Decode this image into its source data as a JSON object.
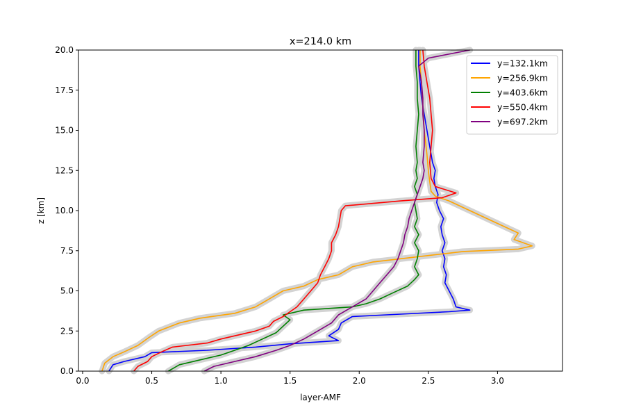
{
  "chart_data": {
    "type": "line",
    "title": "x=214.0 km",
    "xlabel": "layer-AMF",
    "ylabel": "z [km]",
    "xlim": [
      -0.03,
      3.47
    ],
    "ylim": [
      0,
      20
    ],
    "xticks": [
      "0.0",
      "0.5",
      "1.0",
      "1.5",
      "2.0",
      "2.5",
      "3.0"
    ],
    "xtick_values": [
      0,
      0.5,
      1.0,
      1.5,
      2.0,
      2.5,
      3.0
    ],
    "yticks": [
      "0.0",
      "2.5",
      "5.0",
      "7.5",
      "10.0",
      "12.5",
      "15.0",
      "17.5",
      "20.0"
    ],
    "ytick_values": [
      0,
      2.5,
      5.0,
      7.5,
      10.0,
      12.5,
      15.0,
      17.5,
      20.0
    ],
    "grid": false,
    "legend_position": "top-right",
    "uncertainty_band_color": "#d3d3d3",
    "series": [
      {
        "name": "y=132.1km",
        "color": "#0000ff",
        "points": [
          [
            0.19,
            0
          ],
          [
            0.22,
            0.4
          ],
          [
            0.3,
            0.6
          ],
          [
            0.45,
            0.9
          ],
          [
            0.5,
            1.15
          ],
          [
            0.9,
            1.3
          ],
          [
            1.25,
            1.5
          ],
          [
            1.5,
            1.7
          ],
          [
            1.85,
            1.9
          ],
          [
            1.78,
            2.2
          ],
          [
            1.85,
            2.6
          ],
          [
            1.87,
            3.0
          ],
          [
            1.95,
            3.4
          ],
          [
            2.3,
            3.55
          ],
          [
            2.65,
            3.7
          ],
          [
            2.8,
            3.8
          ],
          [
            2.7,
            4.0
          ],
          [
            2.68,
            4.5
          ],
          [
            2.65,
            5.0
          ],
          [
            2.62,
            5.5
          ],
          [
            2.63,
            6.0
          ],
          [
            2.61,
            6.5
          ],
          [
            2.62,
            7.0
          ],
          [
            2.6,
            7.5
          ],
          [
            2.62,
            8.0
          ],
          [
            2.6,
            8.5
          ],
          [
            2.59,
            9.0
          ],
          [
            2.61,
            9.5
          ],
          [
            2.58,
            10.0
          ],
          [
            2.56,
            10.5
          ],
          [
            2.57,
            11.0
          ],
          [
            2.55,
            11.5
          ],
          [
            2.54,
            12.0
          ],
          [
            2.55,
            12.5
          ],
          [
            2.53,
            13.0
          ],
          [
            2.51,
            14.0
          ],
          [
            2.49,
            15.0
          ],
          [
            2.47,
            16.0
          ],
          [
            2.45,
            17.0
          ],
          [
            2.44,
            18.0
          ],
          [
            2.43,
            19.0
          ],
          [
            2.43,
            20.0
          ]
        ]
      },
      {
        "name": "y=256.9km",
        "color": "#ffa500",
        "points": [
          [
            0.14,
            0
          ],
          [
            0.16,
            0.5
          ],
          [
            0.22,
            0.9
          ],
          [
            0.3,
            1.2
          ],
          [
            0.4,
            1.6
          ],
          [
            0.48,
            2.1
          ],
          [
            0.55,
            2.5
          ],
          [
            0.7,
            3.0
          ],
          [
            0.85,
            3.3
          ],
          [
            1.1,
            3.6
          ],
          [
            1.25,
            4.0
          ],
          [
            1.35,
            4.5
          ],
          [
            1.45,
            5.0
          ],
          [
            1.6,
            5.3
          ],
          [
            1.7,
            5.7
          ],
          [
            1.85,
            6.0
          ],
          [
            1.95,
            6.5
          ],
          [
            2.1,
            6.8
          ],
          [
            2.3,
            7.0
          ],
          [
            2.6,
            7.3
          ],
          [
            2.75,
            7.45
          ],
          [
            3.15,
            7.6
          ],
          [
            3.25,
            7.8
          ],
          [
            3.12,
            8.2
          ],
          [
            3.15,
            8.6
          ],
          [
            3.05,
            9.0
          ],
          [
            2.95,
            9.4
          ],
          [
            2.85,
            9.8
          ],
          [
            2.75,
            10.2
          ],
          [
            2.65,
            10.6
          ],
          [
            2.55,
            10.9
          ],
          [
            2.52,
            11.2
          ],
          [
            2.51,
            11.8
          ],
          [
            2.5,
            12.5
          ],
          [
            2.49,
            13.5
          ],
          [
            2.47,
            15.0
          ],
          [
            2.46,
            16.5
          ],
          [
            2.45,
            18.0
          ],
          [
            2.44,
            19.0
          ],
          [
            2.44,
            20.0
          ]
        ]
      },
      {
        "name": "y=403.6km",
        "color": "#008000",
        "points": [
          [
            0.62,
            0
          ],
          [
            0.7,
            0.4
          ],
          [
            0.85,
            0.7
          ],
          [
            1.0,
            1.0
          ],
          [
            1.1,
            1.3
          ],
          [
            1.2,
            1.6
          ],
          [
            1.3,
            2.0
          ],
          [
            1.4,
            2.4
          ],
          [
            1.45,
            2.8
          ],
          [
            1.5,
            3.2
          ],
          [
            1.45,
            3.5
          ],
          [
            1.6,
            3.8
          ],
          [
            1.95,
            4.0
          ],
          [
            2.05,
            4.2
          ],
          [
            2.15,
            4.5
          ],
          [
            2.25,
            4.9
          ],
          [
            2.35,
            5.3
          ],
          [
            2.4,
            5.7
          ],
          [
            2.43,
            6.0
          ],
          [
            2.4,
            6.5
          ],
          [
            2.42,
            7.0
          ],
          [
            2.43,
            7.5
          ],
          [
            2.4,
            8.0
          ],
          [
            2.43,
            8.5
          ],
          [
            2.4,
            9.0
          ],
          [
            2.42,
            9.5
          ],
          [
            2.41,
            10.0
          ],
          [
            2.4,
            10.5
          ],
          [
            2.42,
            11.0
          ],
          [
            2.4,
            11.5
          ],
          [
            2.42,
            12.0
          ],
          [
            2.41,
            12.5
          ],
          [
            2.42,
            13.0
          ],
          [
            2.41,
            14.0
          ],
          [
            2.42,
            15.0
          ],
          [
            2.43,
            16.0
          ],
          [
            2.42,
            17.0
          ],
          [
            2.42,
            18.0
          ],
          [
            2.41,
            19.0
          ],
          [
            2.41,
            20.0
          ]
        ]
      },
      {
        "name": "y=550.4km",
        "color": "#ff0000",
        "points": [
          [
            0.37,
            0
          ],
          [
            0.4,
            0.3
          ],
          [
            0.47,
            0.6
          ],
          [
            0.5,
            0.9
          ],
          [
            0.57,
            1.2
          ],
          [
            0.65,
            1.5
          ],
          [
            0.9,
            1.75
          ],
          [
            1.0,
            2.0
          ],
          [
            1.1,
            2.2
          ],
          [
            1.25,
            2.5
          ],
          [
            1.35,
            2.8
          ],
          [
            1.38,
            3.1
          ],
          [
            1.45,
            3.4
          ],
          [
            1.5,
            3.7
          ],
          [
            1.55,
            4.0
          ],
          [
            1.6,
            4.5
          ],
          [
            1.65,
            5.0
          ],
          [
            1.7,
            5.5
          ],
          [
            1.72,
            6.0
          ],
          [
            1.75,
            6.5
          ],
          [
            1.78,
            7.0
          ],
          [
            1.8,
            7.5
          ],
          [
            1.8,
            8.0
          ],
          [
            1.83,
            8.5
          ],
          [
            1.85,
            9.0
          ],
          [
            1.86,
            9.5
          ],
          [
            1.87,
            10.0
          ],
          [
            1.9,
            10.3
          ],
          [
            2.3,
            10.6
          ],
          [
            2.6,
            10.8
          ],
          [
            2.7,
            11.1
          ],
          [
            2.55,
            11.5
          ],
          [
            2.52,
            12.0
          ],
          [
            2.51,
            13.0
          ],
          [
            2.52,
            14.0
          ],
          [
            2.53,
            15.0
          ],
          [
            2.52,
            16.0
          ],
          [
            2.51,
            17.0
          ],
          [
            2.49,
            18.0
          ],
          [
            2.47,
            19.0
          ],
          [
            2.46,
            20.0
          ]
        ]
      },
      {
        "name": "y=697.2km",
        "color": "#800080",
        "points": [
          [
            0.88,
            0
          ],
          [
            0.95,
            0.3
          ],
          [
            1.1,
            0.6
          ],
          [
            1.25,
            0.9
          ],
          [
            1.4,
            1.3
          ],
          [
            1.5,
            1.6
          ],
          [
            1.6,
            2.0
          ],
          [
            1.7,
            2.5
          ],
          [
            1.8,
            3.0
          ],
          [
            1.85,
            3.5
          ],
          [
            1.95,
            4.0
          ],
          [
            2.05,
            4.5
          ],
          [
            2.1,
            5.0
          ],
          [
            2.15,
            5.5
          ],
          [
            2.2,
            6.0
          ],
          [
            2.25,
            6.5
          ],
          [
            2.28,
            7.0
          ],
          [
            2.3,
            7.5
          ],
          [
            2.32,
            8.0
          ],
          [
            2.33,
            8.5
          ],
          [
            2.35,
            9.0
          ],
          [
            2.36,
            9.5
          ],
          [
            2.38,
            10.0
          ],
          [
            2.4,
            10.5
          ],
          [
            2.42,
            11.0
          ],
          [
            2.44,
            11.5
          ],
          [
            2.46,
            12.0
          ],
          [
            2.47,
            12.5
          ],
          [
            2.46,
            13.0
          ],
          [
            2.47,
            14.0
          ],
          [
            2.47,
            15.0
          ],
          [
            2.46,
            16.0
          ],
          [
            2.46,
            17.0
          ],
          [
            2.45,
            18.0
          ],
          [
            2.43,
            19.0
          ],
          [
            2.5,
            19.5
          ],
          [
            2.8,
            20.0
          ]
        ]
      }
    ]
  }
}
